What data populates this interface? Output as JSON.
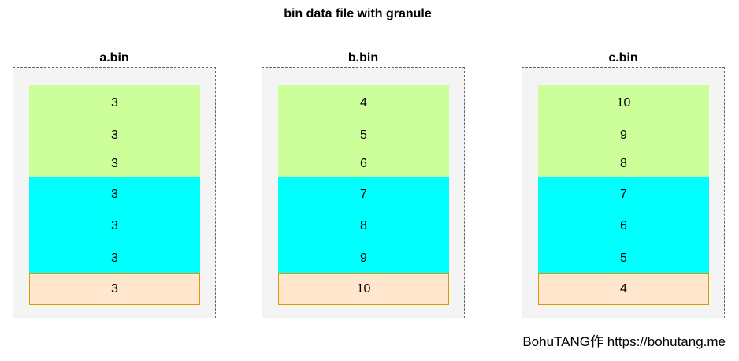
{
  "title": "bin data file with granule",
  "files": [
    {
      "label": "a.bin",
      "green": [
        "3",
        "3",
        "3"
      ],
      "cyan": [
        "3",
        "3",
        "3"
      ],
      "peach": [
        "3"
      ]
    },
    {
      "label": "b.bin",
      "green": [
        "4",
        "5",
        "6"
      ],
      "cyan": [
        "7",
        "8",
        "9"
      ],
      "peach": [
        "10"
      ]
    },
    {
      "label": "c.bin",
      "green": [
        "10",
        "9",
        "8"
      ],
      "cyan": [
        "7",
        "6",
        "5"
      ],
      "peach": [
        "4"
      ]
    }
  ],
  "colors": {
    "green": "#ccff99",
    "cyan": "#00ffff",
    "peach": "#ffe6cc",
    "peach_border": "#d79b00",
    "container": "#f4f4f4"
  },
  "footer": "BohuTANG作 https://bohutang.me"
}
